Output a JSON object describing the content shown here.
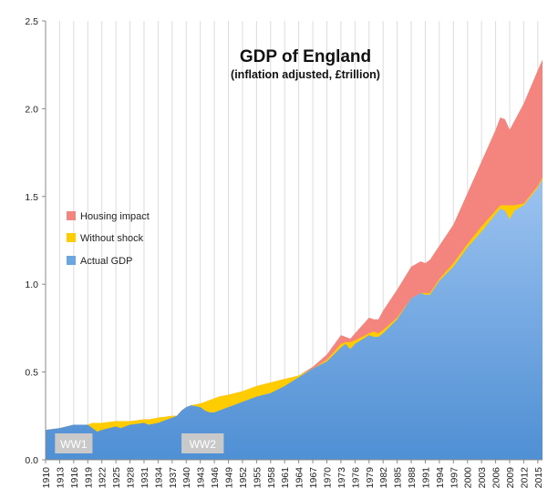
{
  "chart_data": {
    "type": "area",
    "title": "GDP of England",
    "subtitle": "(inflation adjusted, £trillion)",
    "xlabel": "",
    "ylabel": "",
    "ylim": [
      0,
      2.5
    ],
    "xlim": [
      1910,
      2016
    ],
    "y_ticks": [
      "0.0",
      "0.5",
      "1.0",
      "1.5",
      "2.0",
      "2.5"
    ],
    "x_ticks": [
      "1910",
      "1913",
      "1916",
      "1919",
      "1922",
      "1925",
      "1928",
      "1931",
      "1934",
      "1937",
      "1940",
      "1943",
      "1946",
      "1949",
      "1952",
      "1955",
      "1958",
      "1961",
      "1964",
      "1967",
      "1970",
      "1973",
      "1976",
      "1979",
      "1982",
      "1985",
      "1988",
      "1991",
      "1994",
      "1997",
      "2000",
      "2003",
      "2006",
      "2009",
      "2012",
      "2015"
    ],
    "grid": "vertical",
    "legend_position": "left-middle",
    "x": [
      1910,
      1913,
      1916,
      1919,
      1920,
      1921,
      1922,
      1925,
      1926,
      1928,
      1931,
      1932,
      1934,
      1937,
      1938,
      1939,
      1940,
      1941,
      1943,
      1944,
      1945,
      1946,
      1947,
      1949,
      1952,
      1955,
      1958,
      1961,
      1964,
      1967,
      1970,
      1973,
      1974,
      1975,
      1976,
      1979,
      1980,
      1981,
      1982,
      1985,
      1988,
      1990,
      1991,
      1992,
      1994,
      1997,
      2000,
      2003,
      2006,
      2007,
      2008,
      2009,
      2010,
      2012,
      2015,
      2016
    ],
    "series": [
      {
        "name": "Actual GDP",
        "color": "#5b9bd5",
        "values": [
          0.17,
          0.18,
          0.2,
          0.2,
          0.18,
          0.16,
          0.17,
          0.19,
          0.18,
          0.2,
          0.21,
          0.2,
          0.21,
          0.24,
          0.25,
          0.28,
          0.3,
          0.31,
          0.3,
          0.28,
          0.27,
          0.27,
          0.28,
          0.3,
          0.33,
          0.36,
          0.38,
          0.42,
          0.47,
          0.52,
          0.56,
          0.64,
          0.66,
          0.63,
          0.66,
          0.71,
          0.7,
          0.7,
          0.72,
          0.8,
          0.92,
          0.95,
          0.94,
          0.94,
          1.02,
          1.1,
          1.21,
          1.3,
          1.4,
          1.43,
          1.42,
          1.37,
          1.42,
          1.45,
          1.55,
          1.6
        ]
      },
      {
        "name": "Without shock",
        "color": "#ffcc00",
        "values": [
          0.17,
          0.18,
          0.2,
          0.2,
          0.21,
          0.21,
          0.21,
          0.22,
          0.22,
          0.22,
          0.23,
          0.23,
          0.24,
          0.25,
          0.25,
          0.28,
          0.3,
          0.31,
          0.32,
          0.33,
          0.34,
          0.35,
          0.36,
          0.37,
          0.39,
          0.42,
          0.44,
          0.46,
          0.48,
          0.52,
          0.57,
          0.66,
          0.67,
          0.67,
          0.68,
          0.72,
          0.73,
          0.72,
          0.74,
          0.81,
          0.92,
          0.95,
          0.95,
          0.95,
          1.03,
          1.12,
          1.23,
          1.33,
          1.42,
          1.45,
          1.45,
          1.45,
          1.45,
          1.46,
          1.56,
          1.61
        ]
      },
      {
        "name": "Housing impact",
        "color": "#f4857e",
        "values": [
          0.17,
          0.18,
          0.2,
          0.2,
          0.21,
          0.21,
          0.21,
          0.22,
          0.22,
          0.22,
          0.23,
          0.23,
          0.24,
          0.25,
          0.25,
          0.28,
          0.3,
          0.31,
          0.32,
          0.33,
          0.34,
          0.35,
          0.36,
          0.37,
          0.39,
          0.42,
          0.44,
          0.46,
          0.48,
          0.53,
          0.6,
          0.71,
          0.7,
          0.69,
          0.72,
          0.81,
          0.8,
          0.8,
          0.85,
          0.97,
          1.1,
          1.13,
          1.12,
          1.14,
          1.22,
          1.34,
          1.52,
          1.7,
          1.88,
          1.95,
          1.94,
          1.88,
          1.93,
          2.03,
          2.22,
          2.28
        ]
      }
    ],
    "annotations": [
      {
        "label": "WW1",
        "from": 1912,
        "to": 1920
      },
      {
        "label": "WW2",
        "from": 1939,
        "to": 1948
      }
    ]
  }
}
